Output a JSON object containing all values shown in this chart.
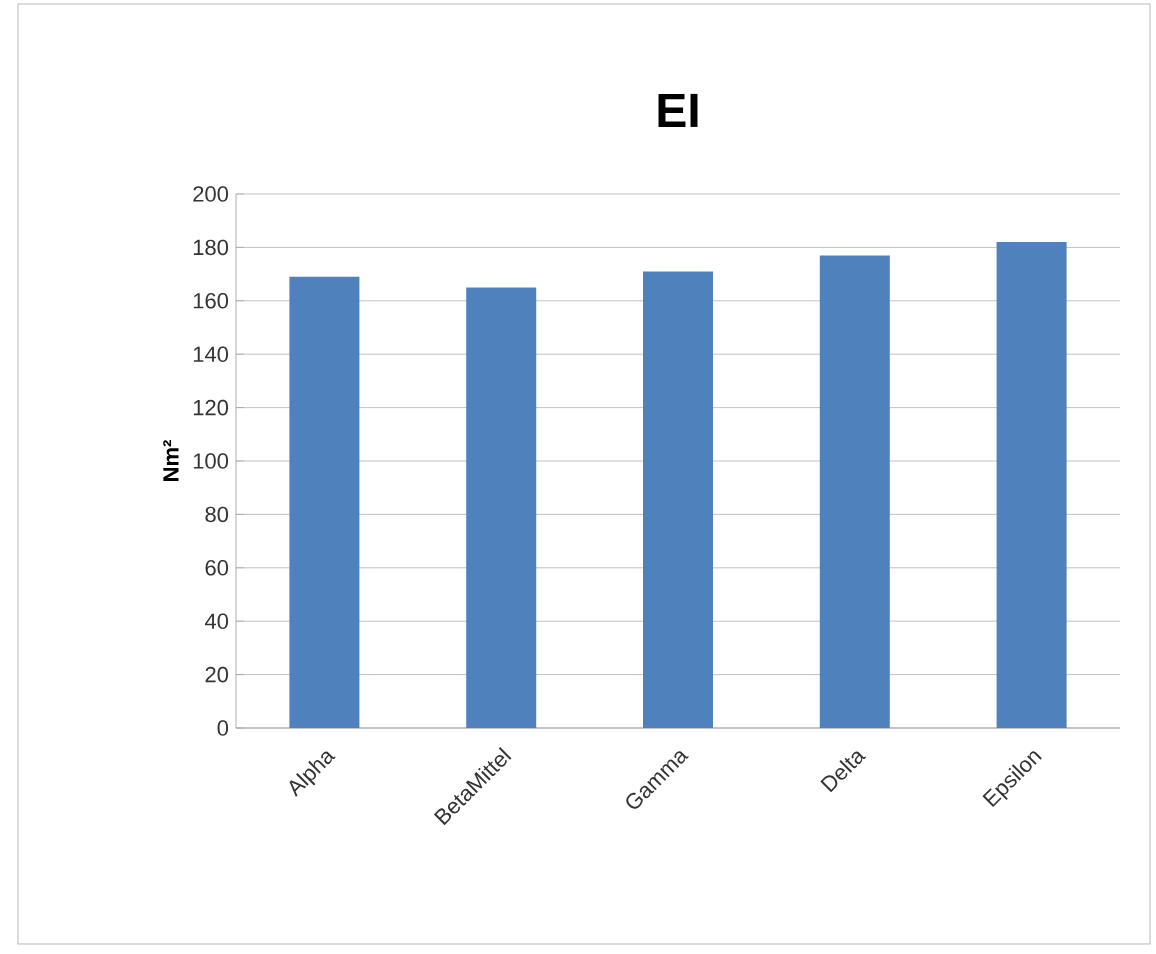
{
  "chart_data": {
    "type": "bar",
    "title": "EI",
    "ylabel": "Nm²",
    "categories": [
      "Alpha",
      "BetaMittel",
      "Gamma",
      "Delta",
      "Epsilon"
    ],
    "values": [
      169,
      165,
      171,
      177,
      182
    ],
    "color": "#4f81bd",
    "ylim": [
      0,
      200
    ],
    "yticks": [
      0,
      20,
      40,
      60,
      80,
      100,
      120,
      140,
      160,
      180,
      200
    ],
    "grid": "y"
  }
}
